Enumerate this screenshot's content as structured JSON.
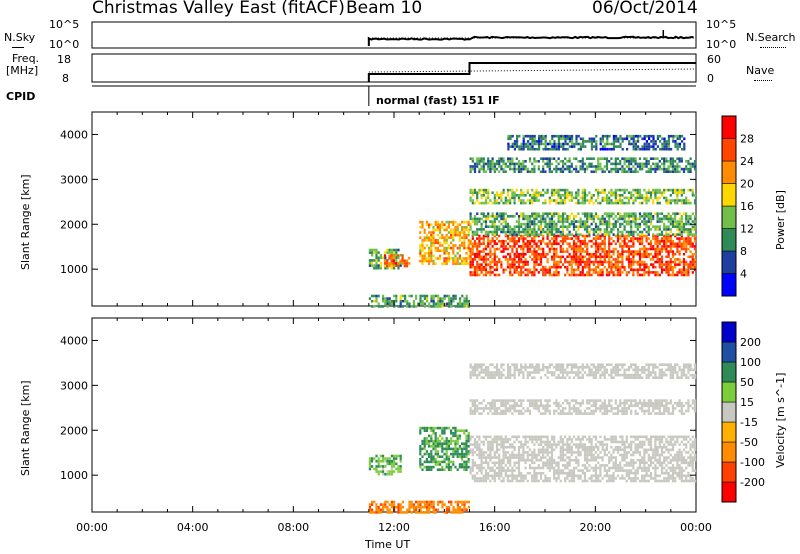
{
  "header": {
    "station": "Christmas Valley East (fitACF)",
    "beam": "Beam 10",
    "date": "06/Oct/2014"
  },
  "top_panels": {
    "nsky_label": "N.Sky",
    "nsky_ticks": [
      "10^5",
      "10^0"
    ],
    "nsearch_label": "N.Search",
    "nsearch_ticks": [
      "10^5",
      "10^0"
    ],
    "freq_label": "Freq.",
    "freq_unit": "[MHz]",
    "freq_ticks": [
      "18",
      "8"
    ],
    "nave_label": "Nave",
    "nave_ticks": [
      "60",
      "0"
    ],
    "cpid_label": "CPID",
    "cpid_value": "normal (fast) 151 IF"
  },
  "colors": {
    "power_scale": [
      "#0000ff",
      "#1f3fa0",
      "#2e8b57",
      "#6fbf4a",
      "#ffd700",
      "#ff8c00",
      "#ff4500",
      "#ff0000"
    ],
    "velocity_scale": [
      "#ff0000",
      "#ff4000",
      "#ff8c00",
      "#ffb000",
      "#c8c8c0",
      "#7ccd3c",
      "#2e8b57",
      "#1f4fa0",
      "#0000cd"
    ],
    "ground_gray": "#c8c8c0"
  },
  "chart_data": [
    {
      "type": "heatmap",
      "title": "Power",
      "ylabel": "Slant Range [km]",
      "xlabel": "",
      "yticks": [
        1000,
        2000,
        3000,
        4000
      ],
      "ylim": [
        180,
        4500
      ],
      "xlim": [
        0,
        24
      ],
      "colorbar_label": "Power [dB]",
      "colorbar_ticks": [
        4,
        8,
        12,
        16,
        20,
        24,
        28
      ],
      "data_start_hour": 11.0,
      "regions": [
        {
          "t0": 11.0,
          "t1": 12.3,
          "r0": 1050,
          "r1": 1500,
          "level": 12
        },
        {
          "t0": 11.6,
          "t1": 12.6,
          "r0": 1100,
          "r1": 1350,
          "level": 24
        },
        {
          "t0": 13.0,
          "t1": 15.0,
          "r0": 1150,
          "r1": 2100,
          "level": 20
        },
        {
          "t0": 15.0,
          "t1": 24.0,
          "r0": 900,
          "r1": 1800,
          "level": 26
        },
        {
          "t0": 15.0,
          "t1": 24.0,
          "r0": 1800,
          "r1": 2300,
          "level": 12
        },
        {
          "t0": 15.0,
          "t1": 24.0,
          "r0": 2500,
          "r1": 2800,
          "level": 14
        },
        {
          "t0": 15.0,
          "t1": 24.0,
          "r0": 3200,
          "r1": 3500,
          "level": 10
        },
        {
          "t0": 16.5,
          "t1": 23.5,
          "r0": 3700,
          "r1": 4000,
          "level": 8
        },
        {
          "t0": 11.0,
          "t1": 15.0,
          "r0": 200,
          "r1": 450,
          "level": 12
        }
      ]
    },
    {
      "type": "heatmap",
      "title": "Velocity",
      "ylabel": "Slant Range [km]",
      "xlabel": "Time UT",
      "xticks": [
        "00:00",
        "04:00",
        "08:00",
        "12:00",
        "16:00",
        "20:00",
        "00:00"
      ],
      "yticks": [
        1000,
        2000,
        3000,
        4000
      ],
      "ylim": [
        180,
        4500
      ],
      "xlim": [
        0,
        24
      ],
      "colorbar_label": "Velocity [m s^-1]",
      "colorbar_ticks": [
        200,
        100,
        50,
        15,
        -15,
        -50,
        -100,
        -200
      ],
      "regions": [
        {
          "t0": 11.0,
          "t1": 12.3,
          "r0": 1050,
          "r1": 1500,
          "level": 40
        },
        {
          "t0": 13.0,
          "t1": 15.0,
          "r0": 1150,
          "r1": 2100,
          "level": 60
        },
        {
          "t0": 15.0,
          "t1": 24.0,
          "r0": 900,
          "r1": 1900,
          "level": 0
        },
        {
          "t0": 15.0,
          "t1": 24.0,
          "r0": 2400,
          "r1": 2700,
          "level": 0
        },
        {
          "t0": 15.0,
          "t1": 24.0,
          "r0": 3200,
          "r1": 3500,
          "level": 0
        },
        {
          "t0": 11.0,
          "t1": 15.0,
          "r0": 200,
          "r1": 450,
          "level": -60
        }
      ]
    }
  ]
}
